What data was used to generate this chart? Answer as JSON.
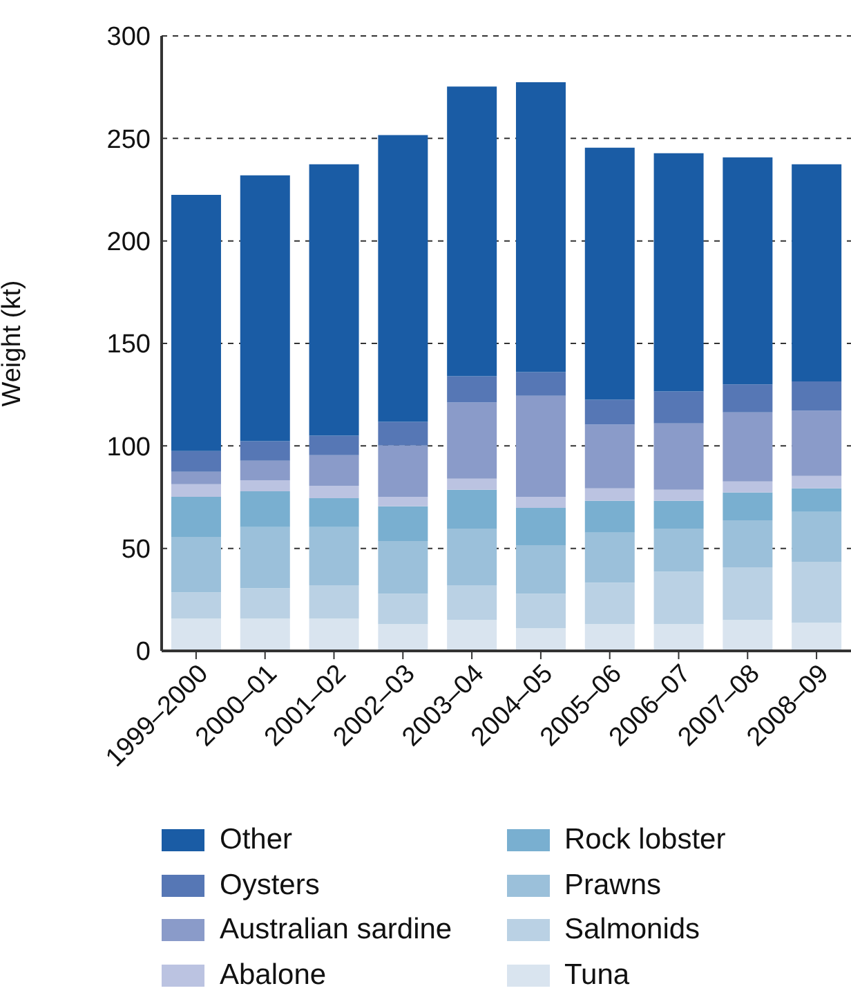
{
  "chart_data": {
    "type": "bar",
    "stacked": true,
    "ylabel": "Weight (kt)",
    "categories": [
      "1999–2000",
      "2000–01",
      "2001–02",
      "2002–03",
      "2003–04",
      "2004–05",
      "2005–06",
      "2006–07",
      "2007–08",
      "2008–09"
    ],
    "series": [
      {
        "name": "Tuna",
        "color": "#d9e4ef",
        "values": [
          15.8,
          15.8,
          15.8,
          13.1,
          15.1,
          11,
          13.1,
          13.1,
          15.1,
          13.7
        ]
      },
      {
        "name": "Salmonids",
        "color": "#bad1e4",
        "values": [
          12.8,
          14.8,
          16.2,
          14.8,
          16.9,
          16.9,
          20.2,
          25.6,
          25.7,
          29.8
        ]
      },
      {
        "name": "Prawns",
        "color": "#9bc0da",
        "values": [
          27,
          29.8,
          28.4,
          25.7,
          27.7,
          23.7,
          24.4,
          21,
          22.9,
          24.3
        ]
      },
      {
        "name": "Rock lobster",
        "color": "#79afd0",
        "values": [
          19.6,
          17.5,
          14.1,
          16.9,
          18.9,
          18.2,
          15.5,
          13.5,
          13.6,
          11.5
        ]
      },
      {
        "name": "Abalone",
        "color": "#bbc3e1",
        "values": [
          6.1,
          5.4,
          6.1,
          4.7,
          5.4,
          5.4,
          6.1,
          5.4,
          5.4,
          6.1
        ]
      },
      {
        "name": "Australian sardine",
        "color": "#8a9bc9",
        "values": [
          6.1,
          9.5,
          14.9,
          25,
          37.2,
          49.3,
          31.1,
          32.4,
          33.7,
          31.7
        ]
      },
      {
        "name": "Oysters",
        "color": "#5677b5",
        "values": [
          10.1,
          9.5,
          9.5,
          11.5,
          12.8,
          11.5,
          12.1,
          15.6,
          13.6,
          14.4
        ]
      },
      {
        "name": "Other",
        "color": "#1a5ca5",
        "values": [
          125,
          129.7,
          132.4,
          139.9,
          141.3,
          141.4,
          123,
          116.2,
          110.8,
          105.9
        ]
      }
    ],
    "ylim": [
      0,
      300
    ],
    "yticks": [
      0,
      50,
      100,
      150,
      200,
      250,
      300
    ],
    "grid": "y",
    "legend": "bottom"
  }
}
